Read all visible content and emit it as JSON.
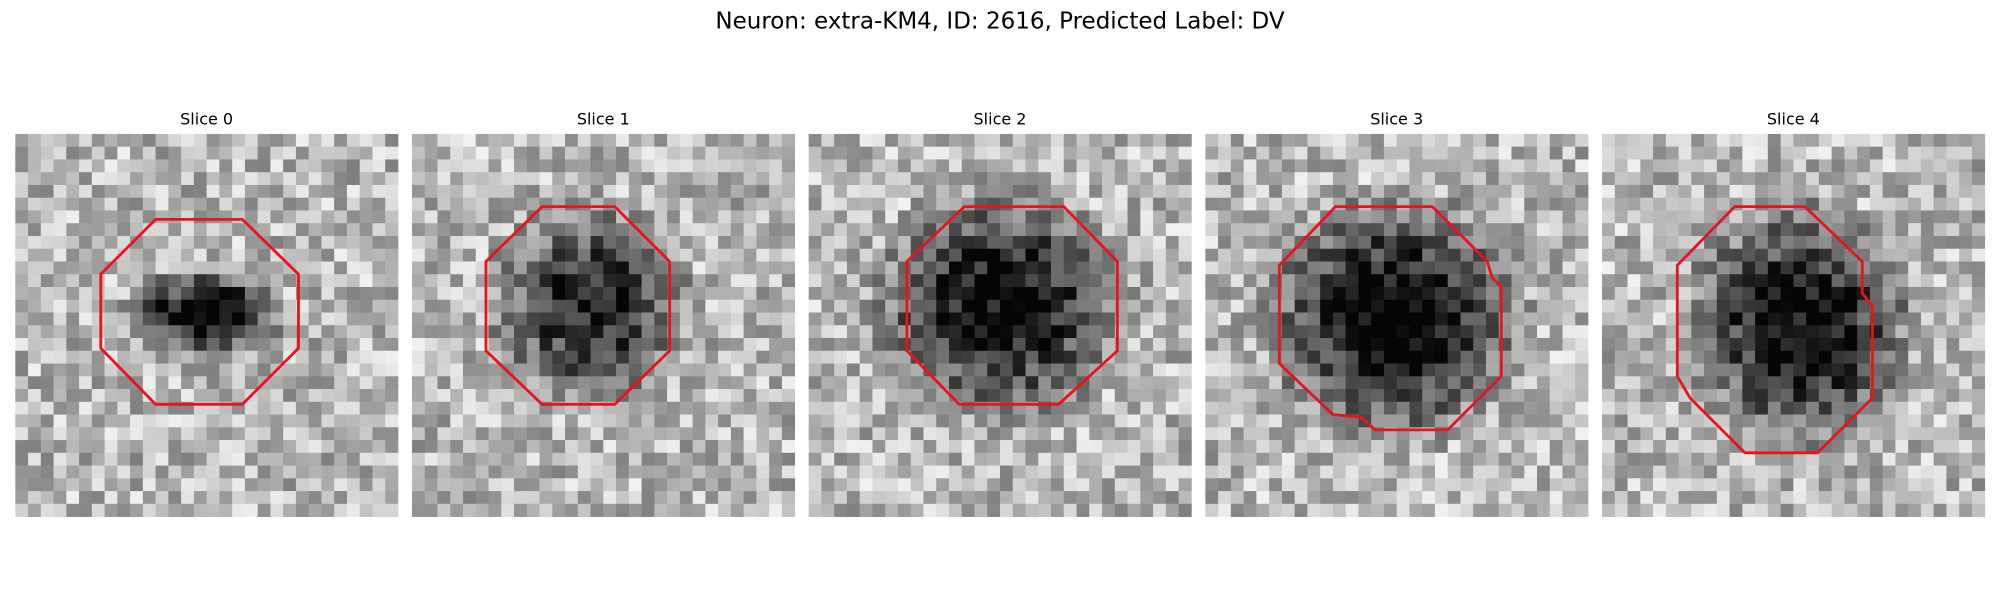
{
  "header": {
    "title": "Neuron: extra-KM4, ID: 2616, Predicted Label: DV"
  },
  "panels": [
    {
      "title": "Slice 0"
    },
    {
      "title": "Slice 1"
    },
    {
      "title": "Slice 2"
    },
    {
      "title": "Slice 3"
    },
    {
      "title": "Slice 4"
    }
  ]
}
